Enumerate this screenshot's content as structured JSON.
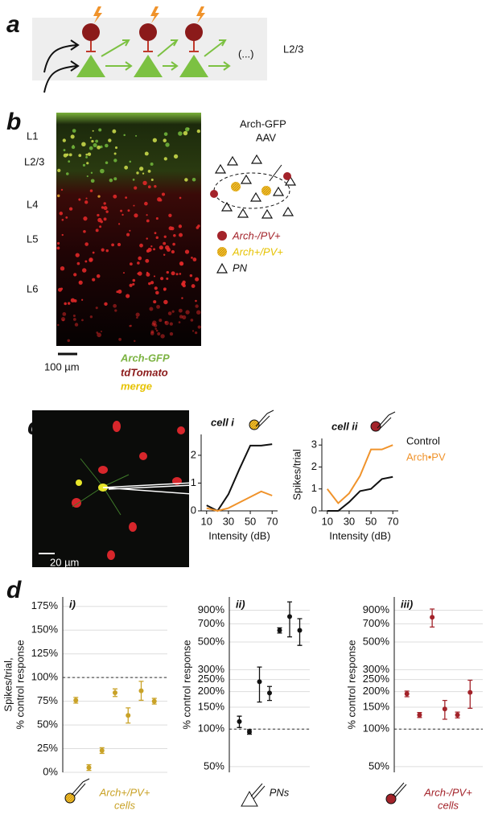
{
  "panel_labels": [
    "a",
    "b",
    "c",
    "d"
  ],
  "panel_a": {
    "layer_label": "L2/3",
    "ellipsis": "(...)"
  },
  "panel_b": {
    "layers": [
      "L1",
      "L2/3",
      "L4",
      "L5",
      "L6"
    ],
    "scale_bar": "100 µm",
    "channels": [
      "Arch-GFP",
      "tdTomato",
      "merge"
    ],
    "virus": [
      "Arch-GFP",
      "AAV"
    ],
    "legend": [
      "Arch-/PV+",
      "Arch+/PV+",
      "PN"
    ]
  },
  "panel_c": {
    "scale_bar": "20 µm"
  },
  "chart_data": [
    {
      "type": "line",
      "title": "cell i",
      "x_label": "Intensity (dB)",
      "x": [
        10,
        20,
        30,
        40,
        50,
        60,
        70
      ],
      "xlim": [
        5,
        75
      ],
      "xticks": [
        10,
        30,
        50,
        70
      ],
      "ylim": [
        0,
        2.75
      ],
      "yticks": [
        0,
        1,
        2
      ],
      "series": [
        {
          "color": "#111111",
          "values": [
            0.2,
            0,
            0.6,
            1.5,
            2.35,
            2.35,
            2.4
          ]
        },
        {
          "color": "#f0932b",
          "values": [
            0.1,
            0,
            0.1,
            0.3,
            0.5,
            0.7,
            0.55
          ]
        }
      ]
    },
    {
      "type": "line",
      "title": "cell ii",
      "x_label": "Intensity (dB)",
      "y_label": "Spikes/trial",
      "x": [
        10,
        20,
        30,
        40,
        50,
        60,
        70
      ],
      "xlim": [
        5,
        75
      ],
      "xticks": [
        10,
        30,
        50,
        70
      ],
      "ylim": [
        0,
        3.3
      ],
      "yticks": [
        0,
        1,
        2,
        3
      ],
      "series": [
        {
          "name": "Control",
          "color": "#111111",
          "values": [
            0,
            0,
            0.4,
            0.9,
            1.0,
            1.45,
            1.55
          ]
        },
        {
          "name": "Arch•PV",
          "color": "#f0932b",
          "values": [
            1.0,
            0.35,
            0.8,
            1.6,
            2.8,
            2.8,
            3.0
          ]
        }
      ]
    },
    {
      "type": "errorbar",
      "title": "i)",
      "y_label": [
        "Spikes/trial,",
        "% control response"
      ],
      "group_label": [
        "Arch+/PV+",
        "cells"
      ],
      "color": "#c9a227",
      "grid": true,
      "reference_line": 100,
      "categories": [
        null,
        null,
        null,
        null,
        null,
        null,
        null
      ],
      "values": [
        76,
        5,
        23,
        84,
        60,
        86,
        75
      ],
      "errors": [
        3,
        3,
        3,
        4,
        8,
        10,
        3
      ],
      "ylim": [
        0,
        185
      ],
      "yticks": [
        {
          "value": 0,
          "label": "0%"
        },
        {
          "value": 25,
          "label": "25%"
        },
        {
          "value": 50,
          "label": "50%"
        },
        {
          "value": 75,
          "label": "75%"
        },
        {
          "value": 100,
          "label": "100%"
        },
        {
          "value": 125,
          "label": "125%"
        },
        {
          "value": 150,
          "label": "150%"
        },
        {
          "value": 175,
          "label": "175%"
        }
      ]
    },
    {
      "type": "errorbar",
      "title": "ii)",
      "y_label": [
        "% control response"
      ],
      "group_label": [
        "PNs"
      ],
      "color": "#111111",
      "grid": true,
      "log_scale": true,
      "reference_line": 100,
      "categories": [
        null,
        null,
        null,
        null,
        null,
        null,
        null
      ],
      "values": [
        115,
        95,
        240,
        195,
        620,
        800,
        620
      ],
      "errors": [
        12,
        4,
        75,
        25,
        30,
        250,
        150
      ],
      "ylim": [
        45,
        1150
      ],
      "yticks": [
        {
          "value": 50,
          "label": "50%"
        },
        {
          "value": 100,
          "label": "100%"
        },
        {
          "value": 150,
          "label": "150%"
        },
        {
          "value": 200,
          "label": "200%"
        },
        {
          "value": 250,
          "label": "250%"
        },
        {
          "value": 300,
          "label": "300%"
        },
        {
          "value": 500,
          "label": "500%"
        },
        {
          "value": 700,
          "label": "700%"
        },
        {
          "value": 900,
          "label": "900%"
        }
      ]
    },
    {
      "type": "errorbar",
      "title": "iii)",
      "y_label": [
        "% control response"
      ],
      "group_label": [
        "Arch-/PV+",
        "cells"
      ],
      "color": "#a3232a",
      "grid": true,
      "log_scale": true,
      "reference_line": 100,
      "categories": [
        null,
        null,
        null,
        null,
        null,
        null
      ],
      "values": [
        192,
        130,
        790,
        145,
        130,
        197
      ],
      "errors": [
        10,
        6,
        130,
        25,
        7,
        50
      ],
      "ylim": [
        45,
        1150
      ],
      "yticks": [
        {
          "value": 50,
          "label": "50%"
        },
        {
          "value": 100,
          "label": "100%"
        },
        {
          "value": 150,
          "label": "150%"
        },
        {
          "value": 200,
          "label": "200%"
        },
        {
          "value": 250,
          "label": "250%"
        },
        {
          "value": 300,
          "label": "300%"
        },
        {
          "value": 500,
          "label": "500%"
        },
        {
          "value": 700,
          "label": "700%"
        },
        {
          "value": 900,
          "label": "900%"
        }
      ]
    }
  ]
}
